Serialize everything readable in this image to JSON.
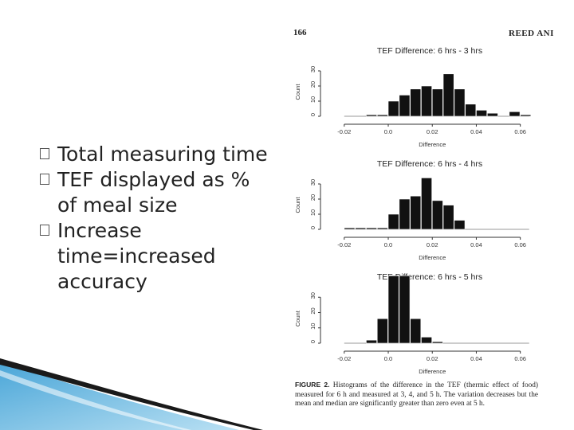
{
  "slide": {
    "bullets": [
      {
        "text": "Total measuring time"
      },
      {
        "text": "TEF displayed as % of meal size"
      },
      {
        "text": "Increase time=increased accuracy"
      }
    ]
  },
  "paper": {
    "page_number": "166",
    "running_head": "REED ANI",
    "caption_label": "FIGURE 2.",
    "caption_text": "Histograms of the difference in the TEF (thermic effect of food) measured for 6 h and measured at 3, 4, and 5 h. The variation decreases but the mean and median are significantly greater than zero even at 5 h."
  },
  "colors": {
    "bars": "#111111",
    "axis": "#333333",
    "text": "#222222"
  },
  "chart_data": [
    {
      "type": "bar",
      "title": "TEF Difference: 6 hrs - 3 hrs",
      "xlabel": "Difference",
      "ylabel": "Count",
      "xlim": [
        -0.025,
        0.067
      ],
      "ylim": [
        0,
        40
      ],
      "xticks": [
        "-0.02",
        "0.0",
        "0.02",
        "0.04",
        "0.06"
      ],
      "yticks": [
        "0",
        "10",
        "20",
        "30"
      ],
      "bin_width": 0.005,
      "bin_starts": [
        -0.015,
        -0.01,
        -0.005,
        0.0,
        0.005,
        0.01,
        0.015,
        0.02,
        0.025,
        0.03,
        0.035,
        0.04,
        0.045,
        0.05,
        0.055,
        0.06
      ],
      "values": [
        0,
        1,
        1,
        10,
        14,
        18,
        20,
        18,
        28,
        18,
        8,
        4,
        2,
        0,
        3,
        1
      ]
    },
    {
      "type": "bar",
      "title": "TEF Difference: 6 hrs - 4 hrs",
      "xlabel": "Difference",
      "ylabel": "Count",
      "xlim": [
        -0.025,
        0.067
      ],
      "ylim": [
        0,
        40
      ],
      "xticks": [
        "-0.02",
        "0.0",
        "0.02",
        "0.04",
        "0.06"
      ],
      "yticks": [
        "0",
        "10",
        "20",
        "30"
      ],
      "bin_width": 0.005,
      "bin_starts": [
        -0.02,
        -0.015,
        -0.01,
        -0.005,
        0.0,
        0.005,
        0.01,
        0.015,
        0.02,
        0.025,
        0.03
      ],
      "values": [
        1,
        1,
        1,
        1,
        10,
        20,
        22,
        34,
        19,
        16,
        6
      ]
    },
    {
      "type": "bar",
      "title": "TEF Difference: 6 hrs - 5 hrs",
      "xlabel": "Difference",
      "ylabel": "Count",
      "xlim": [
        -0.025,
        0.067
      ],
      "ylim": [
        0,
        40
      ],
      "xticks": [
        "-0.02",
        "0.0",
        "0.02",
        "0.04",
        "0.06"
      ],
      "yticks": [
        "0",
        "10",
        "20",
        "30"
      ],
      "bin_width": 0.005,
      "bin_starts": [
        -0.01,
        -0.005,
        0.0,
        0.005,
        0.01,
        0.015,
        0.02
      ],
      "values": [
        2,
        16,
        44,
        44,
        16,
        4,
        1
      ]
    }
  ]
}
